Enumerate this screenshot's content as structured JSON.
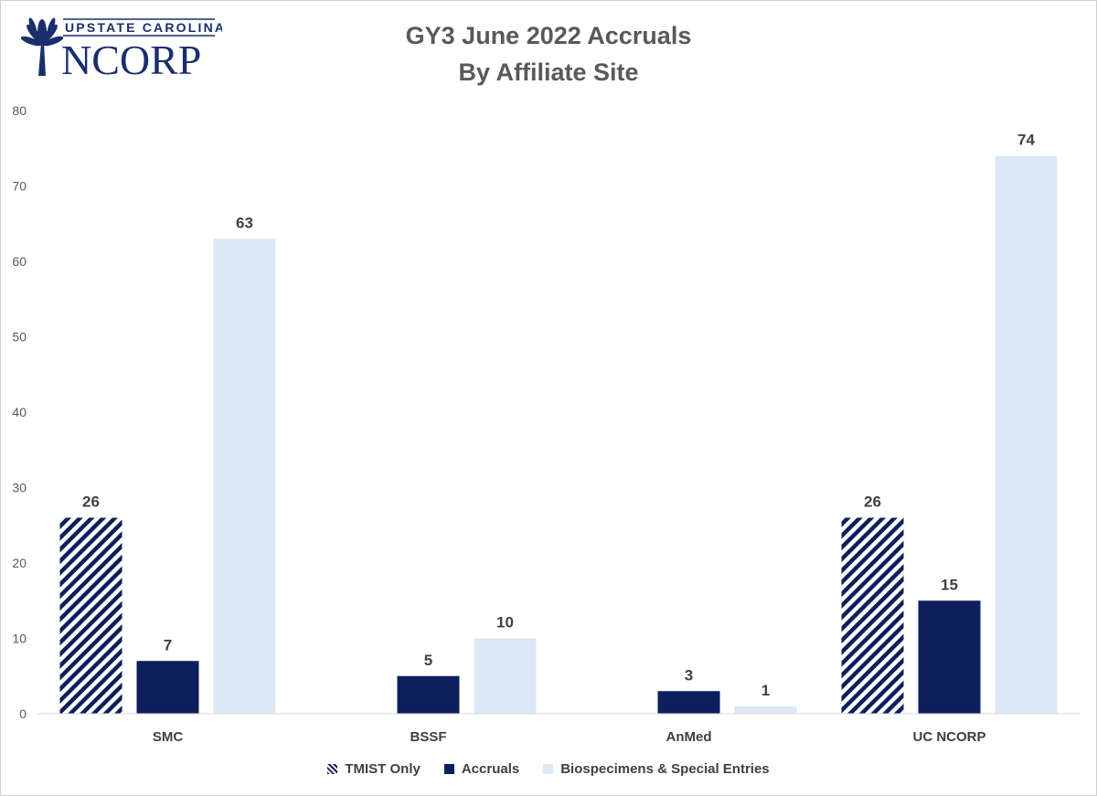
{
  "logo": {
    "top_text": "UPSTATE CAROLINA",
    "main_text": "NCORP",
    "icon": "palmetto-tree-icon"
  },
  "colors": {
    "tmist": "#0d1f5c",
    "accruals": "#0d1f5c",
    "biospecimens": "#dde8f5",
    "logo": "#1a2e6e"
  },
  "chart_data": {
    "type": "bar",
    "title": "GY3 June 2022 Accruals",
    "subtitle": "By Affiliate Site",
    "xlabel": "",
    "ylabel": "",
    "ylim": [
      0,
      80
    ],
    "yticks": [
      0,
      10,
      20,
      30,
      40,
      50,
      60,
      70,
      80
    ],
    "grid": false,
    "legend_position": "bottom",
    "categories": [
      "SMC",
      "BSSF",
      "AnMed",
      "UC NCORP"
    ],
    "series": [
      {
        "name": "TMIST Only",
        "pattern": "diagonal-stripes",
        "values": [
          26,
          null,
          null,
          26
        ]
      },
      {
        "name": "Accruals",
        "pattern": "solid",
        "values": [
          7,
          5,
          3,
          15
        ]
      },
      {
        "name": "Biospecimens & Special Entries",
        "pattern": "solid",
        "values": [
          63,
          10,
          1,
          74
        ]
      }
    ]
  }
}
